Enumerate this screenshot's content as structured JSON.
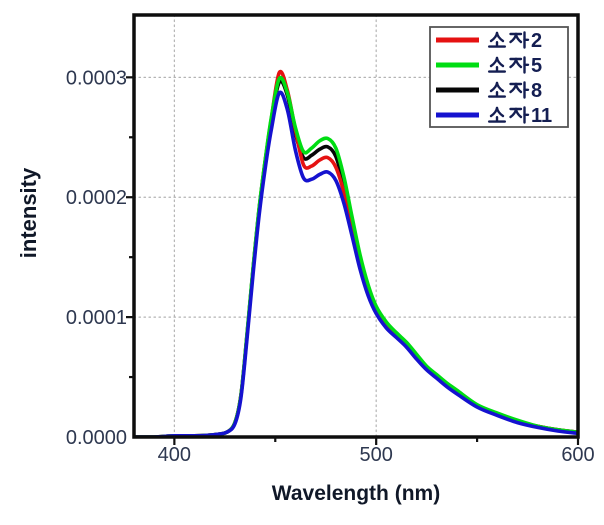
{
  "figure": {
    "background": "#ffffff",
    "frame_color": "#0d0d0d",
    "grid_color": "#b3b3b3",
    "tick_color": "#111111",
    "tick_text_color": "#2e3850",
    "axis_title_color": "#101828"
  },
  "chart_data": {
    "type": "line",
    "title": "",
    "xlabel": "Wavelength (nm)",
    "ylabel": "intensity",
    "xlim": [
      380,
      600
    ],
    "ylim": [
      0,
      0.000352
    ],
    "x_ticks": {
      "major": [
        400,
        500,
        600
      ],
      "minor": [
        450,
        550
      ]
    },
    "y_ticks": {
      "major": [
        0,
        0.0001,
        0.0002,
        0.0003
      ],
      "major_labels": [
        "0.0000",
        "0.0001",
        "0.0002",
        "0.0003"
      ],
      "minor": [
        5e-05,
        0.00015,
        0.00025,
        0.00035
      ]
    },
    "grid": {
      "show": true,
      "style": "dotted",
      "at": "major-ticks"
    },
    "legend": {
      "position": "top-right",
      "border_color": "#555555",
      "text_color": "#141e52",
      "items": [
        "소자 2",
        "소자 5",
        "소자 8",
        "소자 11"
      ]
    },
    "unit_scale": 0.0001,
    "x": [
      380,
      390,
      400,
      410,
      420,
      426,
      430,
      433,
      436,
      439,
      442,
      445,
      448,
      452,
      456,
      460,
      464,
      468,
      472,
      476,
      480,
      484,
      488,
      492,
      496,
      500,
      505,
      510,
      515,
      520,
      525,
      530,
      535,
      540,
      550,
      560,
      570,
      580,
      590,
      600
    ],
    "series": [
      {
        "name": "소자 2",
        "label_korean": "소자",
        "label_number": "2",
        "color": "#e51212",
        "z": 1,
        "values": [
          0.0,
          0.0,
          0.01,
          0.01,
          0.02,
          0.04,
          0.12,
          0.35,
          0.85,
          1.4,
          1.9,
          2.3,
          2.65,
          3.04,
          2.89,
          2.56,
          2.27,
          2.26,
          2.31,
          2.33,
          2.25,
          2.04,
          1.74,
          1.44,
          1.21,
          1.05,
          0.93,
          0.85,
          0.77,
          0.67,
          0.57,
          0.5,
          0.44,
          0.38,
          0.26,
          0.19,
          0.13,
          0.09,
          0.06,
          0.04
        ]
      },
      {
        "name": "소자 5",
        "label_korean": "소자",
        "label_number": "5",
        "color": "#00dd13",
        "z": 2,
        "values": [
          0.0,
          0.0,
          0.01,
          0.01,
          0.02,
          0.04,
          0.12,
          0.35,
          0.86,
          1.41,
          1.91,
          2.31,
          2.66,
          2.99,
          2.87,
          2.58,
          2.38,
          2.41,
          2.47,
          2.49,
          2.41,
          2.17,
          1.84,
          1.52,
          1.27,
          1.09,
          0.96,
          0.87,
          0.79,
          0.69,
          0.59,
          0.52,
          0.45,
          0.39,
          0.27,
          0.2,
          0.14,
          0.09,
          0.06,
          0.04
        ]
      },
      {
        "name": "소자 8",
        "label_korean": "소자",
        "label_number": "8",
        "color": "#060606",
        "z": 0,
        "values": [
          0.0,
          0.0,
          0.01,
          0.01,
          0.02,
          0.04,
          0.12,
          0.35,
          0.85,
          1.4,
          1.9,
          2.3,
          2.64,
          2.96,
          2.85,
          2.53,
          2.33,
          2.35,
          2.4,
          2.42,
          2.34,
          2.1,
          1.79,
          1.48,
          1.24,
          1.07,
          0.94,
          0.86,
          0.78,
          0.68,
          0.58,
          0.51,
          0.44,
          0.38,
          0.26,
          0.19,
          0.13,
          0.09,
          0.06,
          0.04
        ]
      },
      {
        "name": "소자 11",
        "label_korean": "소자",
        "label_number": "11",
        "color": "#1512cf",
        "z": 3,
        "values": [
          0.0,
          0.0,
          0.01,
          0.01,
          0.02,
          0.04,
          0.11,
          0.33,
          0.82,
          1.36,
          1.85,
          2.24,
          2.56,
          2.87,
          2.73,
          2.39,
          2.16,
          2.15,
          2.19,
          2.21,
          2.14,
          1.95,
          1.68,
          1.4,
          1.18,
          1.03,
          0.91,
          0.83,
          0.75,
          0.65,
          0.56,
          0.49,
          0.42,
          0.36,
          0.25,
          0.18,
          0.12,
          0.08,
          0.05,
          0.03
        ]
      }
    ]
  }
}
